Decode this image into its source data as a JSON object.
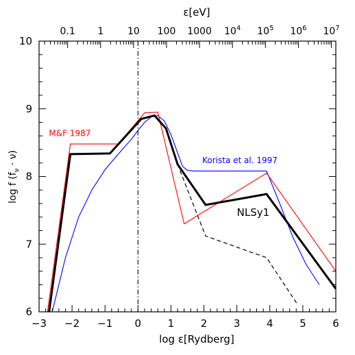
{
  "chart_data": {
    "type": "line",
    "xlabel_prefix": "log ",
    "xlabel_symbol": "ε",
    "xlabel_unit": "[Rydberg]",
    "ylabel_text": "log f (f",
    "ylabel_sub": "ν",
    "ylabel_tail": " · ν)",
    "top_axis_symbol": "ε",
    "top_axis_unit": "[eV]",
    "xlim": [
      -3,
      6
    ],
    "ylim": [
      6,
      10
    ],
    "x_ticks": [
      -3,
      -2,
      -1,
      0,
      1,
      2,
      3,
      4,
      5,
      6
    ],
    "x_tick_labels": [
      "−3",
      "−2",
      "−1",
      "0",
      "1",
      "2",
      "3",
      "4",
      "5",
      "6"
    ],
    "y_ticks": [
      6,
      7,
      8,
      9,
      10
    ],
    "y_tick_labels": [
      "6",
      "7",
      "8",
      "9",
      "10"
    ],
    "top_ticks_ev": [
      0.1,
      1,
      10,
      100,
      1000,
      10000,
      100000,
      1000000,
      10000000
    ],
    "top_tick_labels": [
      {
        "base": "0.1",
        "exp": ""
      },
      {
        "base": "1",
        "exp": ""
      },
      {
        "base": "10",
        "exp": ""
      },
      {
        "base": "100",
        "exp": ""
      },
      {
        "base": "1000",
        "exp": ""
      },
      {
        "base": "10",
        "exp": "4"
      },
      {
        "base": "10",
        "exp": "5"
      },
      {
        "base": "10",
        "exp": "6"
      },
      {
        "base": "10",
        "exp": "7"
      }
    ],
    "rydberg_ev": 13.6057,
    "vline_x": 0,
    "series": [
      {
        "id": "nlsy1",
        "name": "NLSy1",
        "color": "#000000",
        "style": "thick",
        "points": [
          [
            -2.75,
            5.8
          ],
          [
            -2.05,
            8.33
          ],
          [
            -0.85,
            8.34
          ],
          [
            0.1,
            8.85
          ],
          [
            0.5,
            8.9
          ],
          [
            0.85,
            8.71
          ],
          [
            1.2,
            8.18
          ],
          [
            2.05,
            7.58
          ],
          [
            3.9,
            7.74
          ],
          [
            6.0,
            6.34
          ]
        ]
      },
      {
        "id": "nlsy1-dashed",
        "color": "#000000",
        "style": "dashed",
        "points": [
          [
            1.2,
            8.18
          ],
          [
            2.05,
            7.12
          ],
          [
            3.9,
            6.8
          ],
          [
            4.85,
            6.1
          ]
        ]
      },
      {
        "id": "mf1987",
        "name": "M&F 1987",
        "color": "#ff0000",
        "style": "thin",
        "points": [
          [
            -2.8,
            5.8
          ],
          [
            -2.05,
            8.48
          ],
          [
            -0.6,
            8.48
          ],
          [
            0.2,
            8.94
          ],
          [
            0.6,
            8.95
          ],
          [
            1.4,
            7.3
          ],
          [
            3.9,
            8.05
          ],
          [
            6.0,
            6.6
          ]
        ]
      },
      {
        "id": "korista1997",
        "name": "Korista et al. 1997",
        "color": "#0000ff",
        "style": "thin",
        "points": [
          [
            -2.6,
            6.0
          ],
          [
            -2.2,
            6.8
          ],
          [
            -1.8,
            7.4
          ],
          [
            -1.4,
            7.8
          ],
          [
            -1.0,
            8.1
          ],
          [
            -0.6,
            8.33
          ],
          [
            -0.2,
            8.55
          ],
          [
            0.0,
            8.68
          ],
          [
            0.2,
            8.8
          ],
          [
            0.4,
            8.88
          ],
          [
            0.6,
            8.9
          ],
          [
            0.8,
            8.82
          ],
          [
            1.0,
            8.62
          ],
          [
            1.2,
            8.35
          ],
          [
            1.35,
            8.15
          ],
          [
            1.5,
            8.09
          ],
          [
            1.7,
            8.08
          ],
          [
            2.2,
            8.08
          ],
          [
            3.0,
            8.08
          ],
          [
            3.9,
            8.08
          ],
          [
            4.3,
            7.6
          ],
          [
            4.7,
            7.1
          ],
          [
            5.1,
            6.7
          ],
          [
            5.5,
            6.4
          ]
        ]
      }
    ],
    "annotations": [
      {
        "id": "mf-label",
        "text": "M&F 1987",
        "color": "#ff0000",
        "x": -2.7,
        "y": 8.6,
        "size": "small"
      },
      {
        "id": "korista-label",
        "text": "Korista et al. 1997",
        "color": "#0000ff",
        "x": 1.95,
        "y": 8.2,
        "size": "small"
      },
      {
        "id": "nlsy1-label",
        "text": "NLSy1",
        "color": "#000000",
        "x": 3.0,
        "y": 7.42,
        "size": "large"
      }
    ]
  }
}
